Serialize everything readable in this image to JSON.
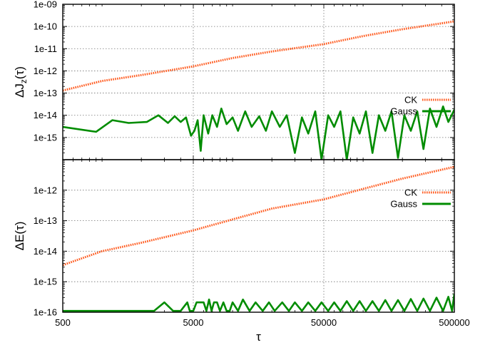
{
  "chart_data": [
    {
      "type": "line",
      "ylabel_main": "ΔJ",
      "ylabel_sub": "z",
      "ylabel_tail": "(τ)",
      "xscale": "log",
      "yscale": "log",
      "xlim": [
        500,
        500000
      ],
      "ylim": [
        1e-16,
        1e-09
      ],
      "ytick_values": [
        1e-15,
        1e-14,
        1e-13,
        1e-12,
        1e-11,
        1e-10,
        1e-09
      ],
      "ytick_labels": [
        "1e-15",
        "1e-14",
        "1e-13",
        "1e-12",
        "1e-11",
        "1e-10",
        "1e-09"
      ],
      "grid": true,
      "legend_placement": "right",
      "series": [
        {
          "name": "CK",
          "color": "#ff5a1e",
          "style": "dotted",
          "x": [
            500,
            1000,
            2000,
            5000,
            10000,
            20000,
            50000,
            100000,
            200000,
            500000
          ],
          "y": [
            1.3e-13,
            3.5e-13,
            6.5e-13,
            1.6e-12,
            3.8e-12,
            7.5e-12,
            1.6e-11,
            3.7e-11,
            7.5e-11,
            1.7e-10
          ]
        },
        {
          "name": "Gauss",
          "color": "#008c00",
          "style": "solid",
          "x": [
            500,
            900,
            1200,
            1600,
            2200,
            2700,
            3200,
            3600,
            4000,
            4400,
            4800,
            5100,
            5400,
            5700,
            6000,
            6500,
            7000,
            7600,
            8200,
            9000,
            10000,
            11000,
            12500,
            14000,
            16000,
            18000,
            20000,
            23000,
            26000,
            30000,
            34000,
            38000,
            43000,
            48000,
            54000,
            60000,
            67000,
            75000,
            84000,
            94000,
            105000,
            118000,
            132000,
            148000,
            165000,
            185000,
            207000,
            232000,
            260000,
            290000,
            325000,
            365000,
            410000,
            450000,
            500000
          ],
          "y": [
            3e-15,
            1.8e-15,
            6e-15,
            4.5e-15,
            5e-15,
            1e-14,
            4.5e-15,
            9e-15,
            5e-15,
            8e-15,
            1.2e-15,
            2e-15,
            6e-15,
            2.5e-16,
            1e-14,
            1.5e-15,
            1e-14,
            3e-15,
            2e-14,
            4e-15,
            8e-15,
            2e-15,
            1.5e-14,
            3e-15,
            9e-15,
            2e-15,
            1.5e-14,
            3e-15,
            1e-14,
            2e-16,
            8e-15,
            1.5e-15,
            1.5e-14,
            1e-16,
            1e-14,
            3e-15,
            1.5e-14,
            1e-16,
            8e-15,
            1.5e-15,
            1.5e-14,
            2e-16,
            1e-14,
            2e-15,
            1.5e-14,
            1.2e-16,
            1e-14,
            2e-15,
            1.5e-14,
            3e-16,
            2e-14,
            3e-15,
            2.5e-14,
            5e-15,
            1.8e-14
          ]
        }
      ]
    },
    {
      "type": "line",
      "xlabel": "τ",
      "ylabel": "ΔE(τ)",
      "xscale": "log",
      "yscale": "log",
      "xlim": [
        500,
        500000
      ],
      "ylim": [
        1e-16,
        1e-11
      ],
      "xtick_values": [
        500,
        5000,
        50000,
        500000
      ],
      "xtick_labels": [
        "500",
        "5000",
        "50000",
        "500000"
      ],
      "ytick_values": [
        1e-16,
        1e-15,
        1e-14,
        1e-13,
        1e-12
      ],
      "ytick_labels": [
        "1e-16",
        "1e-15",
        "1e-14",
        "1e-13",
        "1e-12"
      ],
      "grid": true,
      "legend_placement": "right",
      "series": [
        {
          "name": "CK",
          "color": "#ff5a1e",
          "style": "dotted",
          "x": [
            500,
            1000,
            2000,
            5000,
            10000,
            20000,
            50000,
            100000,
            200000,
            500000
          ],
          "y": [
            3.5e-15,
            1e-14,
            1.9e-14,
            4.8e-14,
            1.1e-13,
            2.5e-13,
            5e-13,
            1.1e-12,
            2.4e-12,
            5.8e-12
          ]
        },
        {
          "name": "Gauss",
          "color": "#008c00",
          "style": "solid",
          "x": [
            500,
            2500,
            3000,
            3500,
            4000,
            4500,
            4700,
            5000,
            5300,
            6000,
            6300,
            6600,
            6900,
            7200,
            7600,
            8000,
            8500,
            9000,
            9500,
            10000,
            11000,
            12000,
            13500,
            15000,
            17000,
            19000,
            21000,
            24000,
            27000,
            30000,
            34000,
            38000,
            43000,
            48000,
            54000,
            60000,
            67000,
            75000,
            84000,
            94000,
            105000,
            118000,
            132000,
            148000,
            165000,
            185000,
            207000,
            232000,
            260000,
            290000,
            325000,
            365000,
            410000,
            450000,
            480000,
            500000
          ],
          "y": [
            1.1e-16,
            1.1e-16,
            2.1e-16,
            1.1e-16,
            1.1e-16,
            2.1e-16,
            1.1e-16,
            1.1e-16,
            2.1e-16,
            2.1e-16,
            1.1e-16,
            2.6e-16,
            1.1e-16,
            2.1e-16,
            2.1e-16,
            1.1e-16,
            2.1e-16,
            1.1e-16,
            1.1e-16,
            2.1e-16,
            1.1e-16,
            2.6e-16,
            1.1e-16,
            2.1e-16,
            1.1e-16,
            2.1e-16,
            1.1e-16,
            2.1e-16,
            1.1e-16,
            2.1e-16,
            1.1e-16,
            2.1e-16,
            1.1e-16,
            2.1e-16,
            1.1e-16,
            2.1e-16,
            1.1e-16,
            2.3e-16,
            1.1e-16,
            2.3e-16,
            1.1e-16,
            2.3e-16,
            1.1e-16,
            2.5e-16,
            1.1e-16,
            2.5e-16,
            1.1e-16,
            2.7e-16,
            1.1e-16,
            2.8e-16,
            1.1e-16,
            3e-16,
            1.1e-16,
            3.2e-16,
            1.1e-16,
            4e-16
          ]
        }
      ]
    }
  ]
}
